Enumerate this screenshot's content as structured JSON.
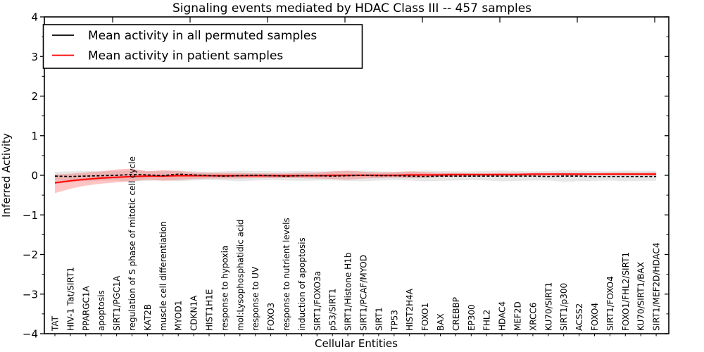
{
  "figure": {
    "background": "#ffffff",
    "accent_red": "#ff0000",
    "accent_black": "#000000",
    "band_gray": "#bbbbbb",
    "band_red": "#ff4040"
  },
  "chart_data": {
    "type": "line",
    "title": "Signaling events mediated by HDAC Class III -- 457 samples",
    "xlabel": "Cellular Entities",
    "ylabel": "Inferred Activity",
    "ylim": [
      -4,
      4
    ],
    "yticks": [
      4,
      3,
      2,
      1,
      0,
      -1,
      -2,
      -3,
      -4
    ],
    "grid": false,
    "legend_position": "upper left",
    "categories": [
      "TAT",
      "HIV-1 Tat/SIRT1",
      "PPARGC1A",
      "apoptosis",
      "SIRT1/PGC1A",
      "regulation of S phase of mitotic cell cycle",
      "KAT2B",
      "muscle cell differentiation",
      "MYOD1",
      "CDKN1A",
      "HIST1H1E",
      "response to hypoxia",
      "mol:Lysophosphatidic acid",
      "response to UV",
      "FOXO3",
      "response to nutrient levels",
      "induction of apoptosis",
      "SIRT1/FOXO3a",
      "p53/SIRT1",
      "SIRT1/Histone H1b",
      "SIRT1/PCAF/MYOD",
      "SIRT1",
      "TP53",
      "HIST2H4A",
      "FOXO1",
      "BAX",
      "CREBBP",
      "EP300",
      "FHL2",
      "HDAC4",
      "MEF2D",
      "XRCC6",
      "KU70/SIRT1",
      "SIRT1/p300",
      "ACSS2",
      "FOXO4",
      "SIRT1/FOXO4",
      "FOXO1/FHL2/SIRT1",
      "KU70/SIRT1/BAX",
      "SIRT1/MEF2D/HDAC4"
    ],
    "series": [
      {
        "name": "Mean activity in all permuted samples",
        "color": "#000000",
        "style": "dashed",
        "band_color": "#bbbbbb",
        "values": [
          -0.02,
          -0.03,
          -0.02,
          -0.01,
          0.0,
          0.02,
          0.01,
          -0.01,
          0.03,
          0.01,
          -0.01,
          -0.02,
          -0.01,
          0.0,
          -0.01,
          -0.02,
          -0.01,
          -0.01,
          -0.02,
          -0.01,
          0.0,
          -0.01,
          -0.01,
          -0.02,
          -0.03,
          -0.02,
          -0.02,
          -0.02,
          -0.02,
          -0.02,
          -0.02,
          -0.02,
          -0.03,
          -0.02,
          -0.02,
          -0.03,
          -0.03,
          -0.03,
          -0.03,
          -0.03
        ],
        "band_upper": [
          0.09,
          0.1,
          0.11,
          0.1,
          0.11,
          0.13,
          0.11,
          0.1,
          0.12,
          0.1,
          0.09,
          0.1,
          0.12,
          0.11,
          0.1,
          0.1,
          0.11,
          0.1,
          0.1,
          0.11,
          0.12,
          0.1,
          0.09,
          0.1,
          0.12,
          0.11,
          0.1,
          0.1,
          0.11,
          0.12,
          0.11,
          0.1,
          0.11,
          0.13,
          0.12,
          0.11,
          0.1,
          0.12,
          0.11,
          0.11
        ],
        "band_lower": [
          -0.13,
          -0.14,
          -0.15,
          -0.13,
          -0.13,
          -0.16,
          -0.14,
          -0.12,
          -0.15,
          -0.13,
          -0.12,
          -0.13,
          -0.15,
          -0.13,
          -0.12,
          -0.13,
          -0.14,
          -0.13,
          -0.13,
          -0.14,
          -0.15,
          -0.13,
          -0.12,
          -0.13,
          -0.15,
          -0.14,
          -0.13,
          -0.12,
          -0.13,
          -0.15,
          -0.14,
          -0.13,
          -0.13,
          -0.16,
          -0.15,
          -0.14,
          -0.13,
          -0.15,
          -0.14,
          -0.14
        ]
      },
      {
        "name": "Mean activity in patient samples",
        "color": "#ff0000",
        "style": "solid",
        "band_color": "#ff4040",
        "values": [
          -0.19,
          -0.14,
          -0.1,
          -0.07,
          -0.05,
          -0.03,
          -0.02,
          -0.02,
          -0.01,
          -0.01,
          -0.01,
          -0.01,
          -0.01,
          -0.01,
          -0.01,
          -0.01,
          -0.01,
          -0.01,
          0.0,
          0.0,
          0.0,
          0.0,
          0.0,
          0.01,
          0.01,
          0.01,
          0.02,
          0.02,
          0.02,
          0.02,
          0.02,
          0.03,
          0.03,
          0.03,
          0.03,
          0.03,
          0.03,
          0.03,
          0.03,
          0.03
        ],
        "band_upper": [
          0.02,
          0.04,
          0.07,
          0.1,
          0.15,
          0.17,
          0.1,
          0.13,
          0.11,
          0.07,
          0.06,
          0.06,
          0.06,
          0.05,
          0.05,
          0.05,
          0.06,
          0.07,
          0.1,
          0.12,
          0.09,
          0.07,
          0.08,
          0.1,
          0.08,
          0.06,
          0.06,
          0.05,
          0.05,
          0.06,
          0.06,
          0.05,
          0.05,
          0.06,
          0.05,
          0.05,
          0.06,
          0.06,
          0.06,
          0.07
        ],
        "band_lower": [
          -0.45,
          -0.34,
          -0.26,
          -0.21,
          -0.18,
          -0.15,
          -0.11,
          -0.14,
          -0.12,
          -0.09,
          -0.08,
          -0.08,
          -0.08,
          -0.07,
          -0.07,
          -0.07,
          -0.07,
          -0.08,
          -0.09,
          -0.11,
          -0.08,
          -0.07,
          -0.06,
          -0.07,
          -0.06,
          -0.04,
          -0.03,
          -0.03,
          -0.02,
          -0.02,
          -0.02,
          -0.01,
          -0.01,
          -0.01,
          -0.01,
          0.0,
          0.0,
          0.0,
          0.0,
          -0.01
        ]
      }
    ],
    "top_axis_tick_x": [
      160,
      270,
      380,
      490,
      600,
      710,
      820,
      930
    ]
  }
}
